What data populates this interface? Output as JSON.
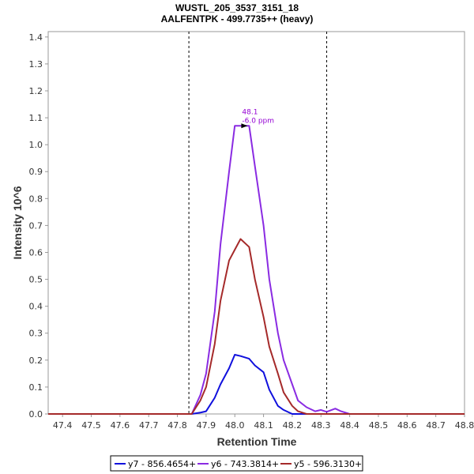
{
  "chart_data": {
    "type": "line",
    "title": "WUSTL_205_3537_3151_18",
    "subtitle": "AALFENTPK - 499.7735++ (heavy)",
    "xlabel": "Retention Time",
    "ylabel": "Intensity 10^6",
    "xlim": [
      47.35,
      48.8
    ],
    "ylim": [
      0,
      1.42
    ],
    "x_ticks": [
      "47.4",
      "47.5",
      "47.6",
      "47.7",
      "47.8",
      "47.9",
      "48.0",
      "48.1",
      "48.2",
      "48.3",
      "48.4",
      "48.5",
      "48.6",
      "48.7",
      "48.8"
    ],
    "y_ticks": [
      "0.0",
      "0.1",
      "0.2",
      "0.3",
      "0.4",
      "0.5",
      "0.6",
      "0.7",
      "0.8",
      "0.9",
      "1.0",
      "1.1",
      "1.2",
      "1.3",
      "1.4"
    ],
    "grid": false,
    "legend_position": "bottom",
    "vlines": [
      47.84,
      48.32
    ],
    "annotation": {
      "x": 48.05,
      "y": 1.07,
      "lines": [
        "48.1",
        "-6.0 ppm"
      ],
      "color": "#9400D3"
    },
    "series": [
      {
        "name": "y7 - 856.4654+",
        "color": "#1010DD",
        "x": [
          47.35,
          47.85,
          47.88,
          47.9,
          47.93,
          47.95,
          47.98,
          48.0,
          48.02,
          48.05,
          48.07,
          48.1,
          48.12,
          48.15,
          48.17,
          48.2,
          48.22,
          48.25,
          48.28,
          48.3,
          48.32,
          48.35,
          48.37,
          48.4,
          48.8
        ],
        "y": [
          0,
          0,
          0.005,
          0.01,
          0.06,
          0.11,
          0.17,
          0.22,
          0.215,
          0.205,
          0.18,
          0.155,
          0.09,
          0.03,
          0.015,
          0,
          0,
          0,
          0,
          0,
          0,
          0,
          0,
          0,
          0
        ]
      },
      {
        "name": "y6 - 743.3814+",
        "color": "#8A2BE2",
        "x": [
          47.35,
          47.85,
          47.88,
          47.9,
          47.93,
          47.95,
          47.98,
          48.0,
          48.02,
          48.05,
          48.07,
          48.1,
          48.12,
          48.15,
          48.17,
          48.2,
          48.22,
          48.25,
          48.28,
          48.3,
          48.32,
          48.35,
          48.37,
          48.4,
          48.8
        ],
        "y": [
          0,
          0,
          0.07,
          0.15,
          0.38,
          0.63,
          0.9,
          1.07,
          1.07,
          1.07,
          0.92,
          0.7,
          0.5,
          0.3,
          0.2,
          0.11,
          0.05,
          0.025,
          0.01,
          0.015,
          0.008,
          0.02,
          0.01,
          0,
          0
        ]
      },
      {
        "name": "y5 - 596.3130+",
        "color": "#A52A2A",
        "x": [
          47.35,
          47.85,
          47.88,
          47.9,
          47.93,
          47.95,
          47.98,
          48.0,
          48.02,
          48.05,
          48.07,
          48.1,
          48.12,
          48.15,
          48.17,
          48.2,
          48.22,
          48.25,
          48.28,
          48.3,
          48.32,
          48.35,
          48.37,
          48.4,
          48.8
        ],
        "y": [
          0,
          0,
          0.05,
          0.1,
          0.26,
          0.42,
          0.57,
          0.61,
          0.65,
          0.62,
          0.5,
          0.36,
          0.25,
          0.15,
          0.08,
          0.03,
          0.01,
          0,
          0,
          0,
          0,
          0,
          0,
          0,
          0
        ]
      }
    ]
  }
}
